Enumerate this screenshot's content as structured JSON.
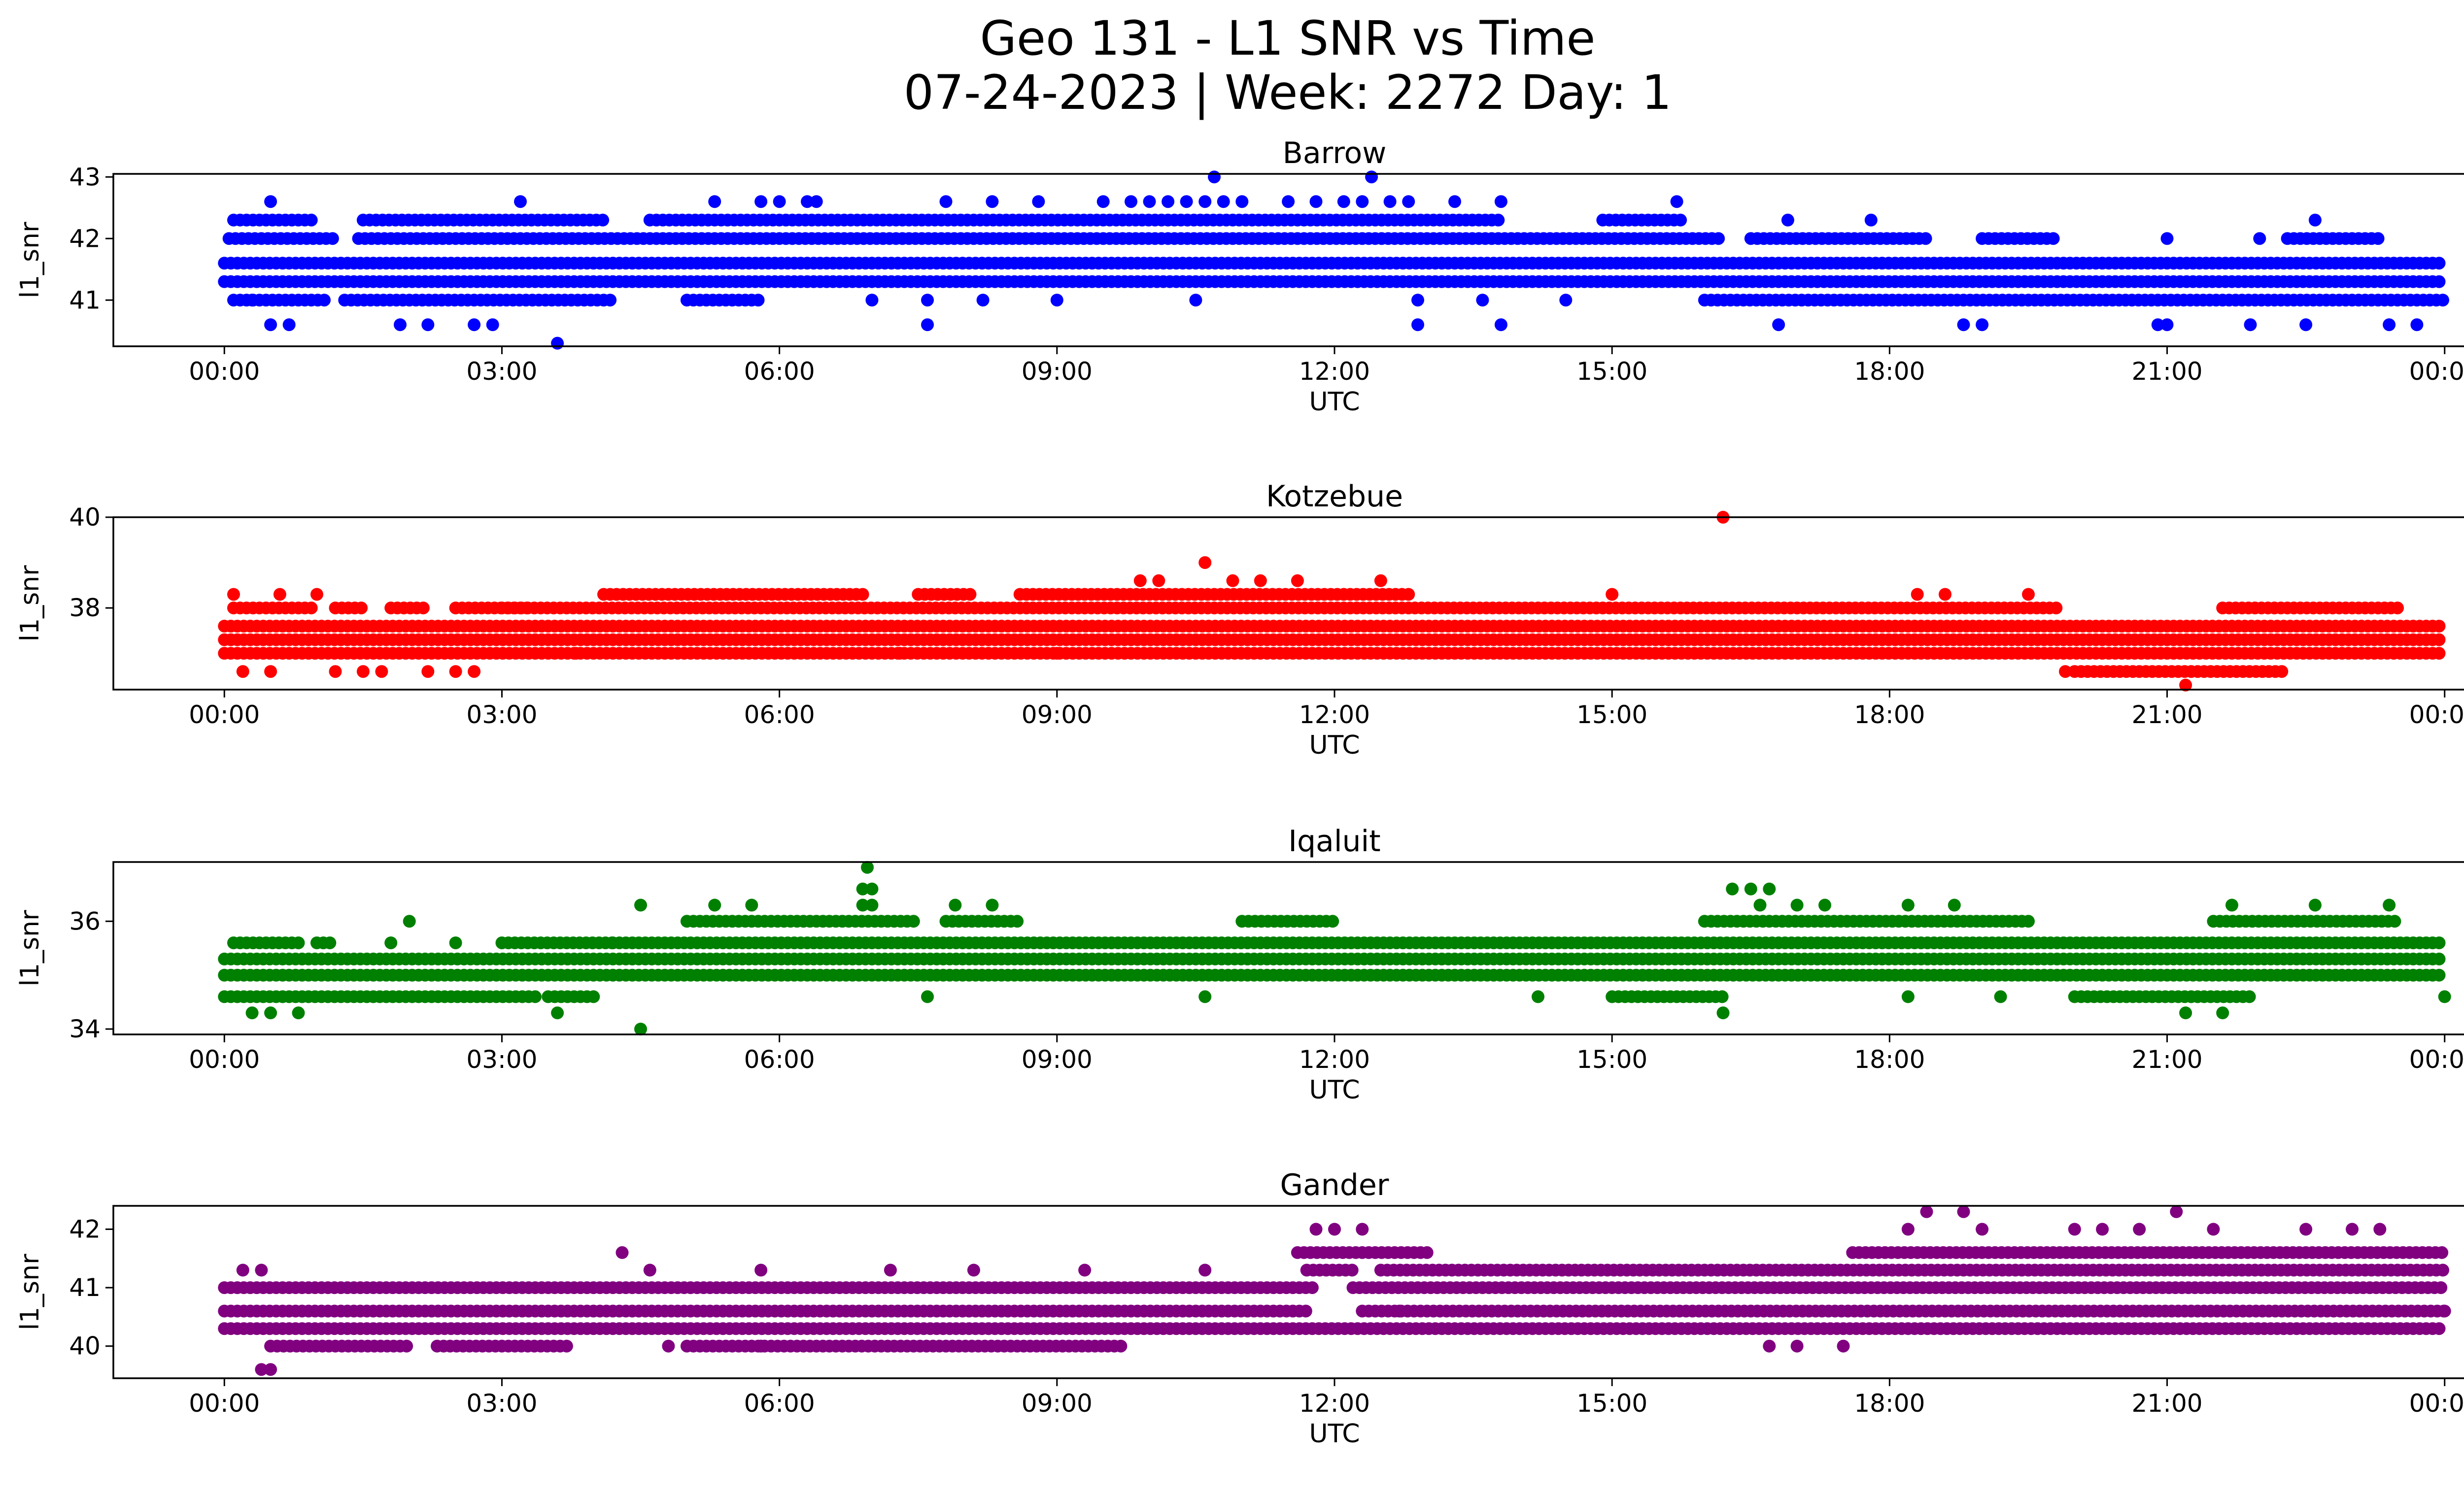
{
  "figure": {
    "title_line1": "Geo 131 - L1 SNR vs Time",
    "title_line2": "07-24-2023 | Week: 2272 Day: 1"
  },
  "chart_data": [
    {
      "type": "scatter",
      "title": "Barrow",
      "xlabel": "UTC",
      "ylabel": "l1_snr",
      "color": "#0000ff",
      "x_tick_labels": [
        "00:00",
        "03:00",
        "06:00",
        "09:00",
        "12:00",
        "15:00",
        "18:00",
        "21:00",
        "00:00"
      ],
      "x_ticks_hours": [
        0,
        3,
        6,
        9,
        12,
        15,
        18,
        21,
        24
      ],
      "xlim_hours": [
        -1.2,
        25.2
      ],
      "ylim": [
        40.25,
        43.05
      ],
      "y_ticks": [
        41,
        42,
        43
      ],
      "bands": [
        {
          "y": 41.3,
          "ranges": [
            [
              0,
              24
            ]
          ]
        },
        {
          "y": 41.6,
          "ranges": [
            [
              0,
              24
            ]
          ]
        },
        {
          "y": 42.0,
          "ranges": [
            [
              0.05,
              1.2
            ],
            [
              1.45,
              16.2
            ],
            [
              16.5,
              18.4
            ],
            [
              19.0,
              19.8
            ],
            [
              22.3,
              23.3
            ]
          ]
        },
        {
          "y": 41.0,
          "ranges": [
            [
              0.1,
              1.1
            ],
            [
              1.3,
              4.2
            ],
            [
              5.0,
              5.8
            ],
            [
              16.0,
              24
            ]
          ]
        },
        {
          "y": 42.3,
          "ranges": [
            [
              0.1,
              1.0
            ],
            [
              1.5,
              4.1
            ],
            [
              4.6,
              13.8
            ],
            [
              14.9,
              15.8
            ]
          ]
        }
      ],
      "scatter": [
        {
          "x": 10.7,
          "y": 43.0
        },
        {
          "x": 12.4,
          "y": 43.0
        },
        {
          "x": 0.5,
          "y": 42.6
        },
        {
          "x": 3.2,
          "y": 42.6
        },
        {
          "x": 5.3,
          "y": 42.6
        },
        {
          "x": 5.8,
          "y": 42.6
        },
        {
          "x": 6.0,
          "y": 42.6
        },
        {
          "x": 6.3,
          "y": 42.6
        },
        {
          "x": 6.4,
          "y": 42.6
        },
        {
          "x": 7.8,
          "y": 42.6
        },
        {
          "x": 8.3,
          "y": 42.6
        },
        {
          "x": 8.8,
          "y": 42.6
        },
        {
          "x": 9.5,
          "y": 42.6
        },
        {
          "x": 9.8,
          "y": 42.6
        },
        {
          "x": 10.0,
          "y": 42.6
        },
        {
          "x": 10.2,
          "y": 42.6
        },
        {
          "x": 10.4,
          "y": 42.6
        },
        {
          "x": 10.6,
          "y": 42.6
        },
        {
          "x": 10.8,
          "y": 42.6
        },
        {
          "x": 11.0,
          "y": 42.6
        },
        {
          "x": 11.5,
          "y": 42.6
        },
        {
          "x": 11.8,
          "y": 42.6
        },
        {
          "x": 12.1,
          "y": 42.6
        },
        {
          "x": 12.3,
          "y": 42.6
        },
        {
          "x": 12.6,
          "y": 42.6
        },
        {
          "x": 12.8,
          "y": 42.6
        },
        {
          "x": 13.3,
          "y": 42.6
        },
        {
          "x": 13.8,
          "y": 42.6
        },
        {
          "x": 15.7,
          "y": 42.6
        },
        {
          "x": 16.9,
          "y": 42.3
        },
        {
          "x": 17.8,
          "y": 42.3
        },
        {
          "x": 22.6,
          "y": 42.3
        },
        {
          "x": 21.0,
          "y": 42.0
        },
        {
          "x": 22.0,
          "y": 42.0
        },
        {
          "x": 0.5,
          "y": 40.6
        },
        {
          "x": 0.7,
          "y": 40.6
        },
        {
          "x": 1.9,
          "y": 40.6
        },
        {
          "x": 2.2,
          "y": 40.6
        },
        {
          "x": 2.7,
          "y": 40.6
        },
        {
          "x": 2.9,
          "y": 40.6
        },
        {
          "x": 3.6,
          "y": 40.3
        },
        {
          "x": 7.6,
          "y": 40.6
        },
        {
          "x": 12.9,
          "y": 40.6
        },
        {
          "x": 13.8,
          "y": 40.6
        },
        {
          "x": 16.8,
          "y": 40.6
        },
        {
          "x": 18.8,
          "y": 40.6
        },
        {
          "x": 19.0,
          "y": 40.6
        },
        {
          "x": 20.9,
          "y": 40.6
        },
        {
          "x": 21.0,
          "y": 40.6
        },
        {
          "x": 21.9,
          "y": 40.6
        },
        {
          "x": 22.5,
          "y": 40.6
        },
        {
          "x": 23.4,
          "y": 40.6
        },
        {
          "x": 23.7,
          "y": 40.6
        },
        {
          "x": 0.3,
          "y": 41.0
        },
        {
          "x": 7.0,
          "y": 41.0
        },
        {
          "x": 7.6,
          "y": 41.0
        },
        {
          "x": 8.2,
          "y": 41.0
        },
        {
          "x": 9.0,
          "y": 41.0
        },
        {
          "x": 10.5,
          "y": 41.0
        },
        {
          "x": 12.9,
          "y": 41.0
        },
        {
          "x": 13.6,
          "y": 41.0
        },
        {
          "x": 14.5,
          "y": 41.0
        }
      ]
    },
    {
      "type": "scatter",
      "title": "Kotzebue",
      "xlabel": "UTC",
      "ylabel": "l1_snr",
      "color": "#ff0000",
      "x_tick_labels": [
        "00:00",
        "03:00",
        "06:00",
        "09:00",
        "12:00",
        "15:00",
        "18:00",
        "21:00",
        "00:00"
      ],
      "x_ticks_hours": [
        0,
        3,
        6,
        9,
        12,
        15,
        18,
        21,
        24
      ],
      "xlim_hours": [
        -1.2,
        25.2
      ],
      "ylim": [
        36.2,
        40.0
      ],
      "y_ticks": [
        38,
        40
      ],
      "bands": [
        {
          "y": 37.0,
          "ranges": [
            [
              0,
              24
            ]
          ]
        },
        {
          "y": 37.3,
          "ranges": [
            [
              0,
              24
            ]
          ]
        },
        {
          "y": 37.6,
          "ranges": [
            [
              0,
              24
            ]
          ]
        },
        {
          "y": 38.0,
          "ranges": [
            [
              0.1,
              1.0
            ],
            [
              1.2,
              1.5
            ],
            [
              1.8,
              2.2
            ],
            [
              2.5,
              3.3
            ],
            [
              3.0,
              19.8
            ],
            [
              21.6,
              23.5
            ]
          ]
        },
        {
          "y": 38.3,
          "ranges": [
            [
              4.1,
              6.9
            ],
            [
              7.5,
              8.1
            ],
            [
              8.6,
              12.8
            ]
          ]
        },
        {
          "y": 36.6,
          "ranges": [
            [
              20.0,
              22.3
            ]
          ]
        }
      ],
      "scatter": [
        {
          "x": 16.2,
          "y": 40.0
        },
        {
          "x": 10.6,
          "y": 39.0
        },
        {
          "x": 12.5,
          "y": 38.6
        },
        {
          "x": 9.9,
          "y": 38.6
        },
        {
          "x": 10.1,
          "y": 38.6
        },
        {
          "x": 10.9,
          "y": 38.6
        },
        {
          "x": 11.2,
          "y": 38.6
        },
        {
          "x": 11.6,
          "y": 38.6
        },
        {
          "x": 0.1,
          "y": 38.3
        },
        {
          "x": 0.6,
          "y": 38.3
        },
        {
          "x": 1.0,
          "y": 38.3
        },
        {
          "x": 15.0,
          "y": 38.3
        },
        {
          "x": 18.3,
          "y": 38.3
        },
        {
          "x": 18.6,
          "y": 38.3
        },
        {
          "x": 19.5,
          "y": 38.3
        },
        {
          "x": 0.2,
          "y": 36.6
        },
        {
          "x": 0.5,
          "y": 36.6
        },
        {
          "x": 1.2,
          "y": 36.6
        },
        {
          "x": 1.5,
          "y": 36.6
        },
        {
          "x": 1.7,
          "y": 36.6
        },
        {
          "x": 2.2,
          "y": 36.6
        },
        {
          "x": 2.5,
          "y": 36.6
        },
        {
          "x": 2.7,
          "y": 36.6
        },
        {
          "x": 19.9,
          "y": 36.6
        },
        {
          "x": 21.2,
          "y": 36.3
        },
        {
          "x": 3.8,
          "y": 37.0
        },
        {
          "x": 7.3,
          "y": 37.0
        },
        {
          "x": 9.0,
          "y": 37.0
        }
      ]
    },
    {
      "type": "scatter",
      "title": "Iqaluit",
      "xlabel": "UTC",
      "ylabel": "l1_snr",
      "color": "#008000",
      "x_tick_labels": [
        "00:00",
        "03:00",
        "06:00",
        "09:00",
        "12:00",
        "15:00",
        "18:00",
        "21:00",
        "00:00"
      ],
      "x_ticks_hours": [
        0,
        3,
        6,
        9,
        12,
        15,
        18,
        21,
        24
      ],
      "xlim_hours": [
        -1.2,
        25.2
      ],
      "ylim": [
        33.9,
        37.1
      ],
      "y_ticks": [
        34,
        36
      ],
      "bands": [
        {
          "y": 35.0,
          "ranges": [
            [
              0,
              24
            ]
          ]
        },
        {
          "y": 35.3,
          "ranges": [
            [
              0,
              24
            ]
          ]
        },
        {
          "y": 35.6,
          "ranges": [
            [
              0.1,
              0.8
            ],
            [
              1.0,
              1.2
            ],
            [
              3.0,
              4.2
            ],
            [
              4.2,
              24
            ]
          ]
        },
        {
          "y": 34.6,
          "ranges": [
            [
              0,
              3.4
            ],
            [
              3.5,
              4.0
            ],
            [
              15.0,
              16.2
            ],
            [
              20.0,
              21.9
            ]
          ]
        },
        {
          "y": 36.0,
          "ranges": [
            [
              5.0,
              7.5
            ],
            [
              7.8,
              8.6
            ],
            [
              11.0,
              12.0
            ],
            [
              16.0,
              19.5
            ],
            [
              21.5,
              23.5
            ]
          ]
        }
      ],
      "scatter": [
        {
          "x": 6.95,
          "y": 37.0
        },
        {
          "x": 6.9,
          "y": 36.6
        },
        {
          "x": 7.0,
          "y": 36.6
        },
        {
          "x": 6.9,
          "y": 36.3
        },
        {
          "x": 7.0,
          "y": 36.3
        },
        {
          "x": 4.5,
          "y": 36.3
        },
        {
          "x": 5.3,
          "y": 36.3
        },
        {
          "x": 5.7,
          "y": 36.3
        },
        {
          "x": 7.9,
          "y": 36.3
        },
        {
          "x": 8.3,
          "y": 36.3
        },
        {
          "x": 16.3,
          "y": 36.6
        },
        {
          "x": 16.5,
          "y": 36.6
        },
        {
          "x": 16.7,
          "y": 36.6
        },
        {
          "x": 16.6,
          "y": 36.3
        },
        {
          "x": 17.0,
          "y": 36.3
        },
        {
          "x": 17.3,
          "y": 36.3
        },
        {
          "x": 18.2,
          "y": 36.3
        },
        {
          "x": 18.7,
          "y": 36.3
        },
        {
          "x": 21.7,
          "y": 36.3
        },
        {
          "x": 22.6,
          "y": 36.3
        },
        {
          "x": 23.4,
          "y": 36.3
        },
        {
          "x": 2.0,
          "y": 36.0
        },
        {
          "x": 1.8,
          "y": 35.6
        },
        {
          "x": 2.5,
          "y": 35.6
        },
        {
          "x": 0.3,
          "y": 34.3
        },
        {
          "x": 0.5,
          "y": 34.3
        },
        {
          "x": 0.8,
          "y": 34.3
        },
        {
          "x": 3.6,
          "y": 34.3
        },
        {
          "x": 4.5,
          "y": 34.0
        },
        {
          "x": 16.2,
          "y": 34.3
        },
        {
          "x": 21.2,
          "y": 34.3
        },
        {
          "x": 21.6,
          "y": 34.3
        },
        {
          "x": 24.0,
          "y": 34.6
        },
        {
          "x": 7.6,
          "y": 34.6
        },
        {
          "x": 10.6,
          "y": 34.6
        },
        {
          "x": 14.2,
          "y": 34.6
        },
        {
          "x": 18.2,
          "y": 34.6
        },
        {
          "x": 19.2,
          "y": 34.6
        }
      ]
    },
    {
      "type": "scatter",
      "title": "Gander",
      "xlabel": "UTC",
      "ylabel": "l1_snr",
      "color": "#800080",
      "x_tick_labels": [
        "00:00",
        "03:00",
        "06:00",
        "09:00",
        "12:00",
        "15:00",
        "18:00",
        "21:00",
        "00:00"
      ],
      "x_ticks_hours": [
        0,
        3,
        6,
        9,
        12,
        15,
        18,
        21,
        24
      ],
      "xlim_hours": [
        -1.2,
        25.2
      ],
      "ylim": [
        39.45,
        42.4
      ],
      "y_ticks": [
        40,
        41,
        42
      ],
      "bands": [
        {
          "y": 40.3,
          "ranges": [
            [
              0,
              24
            ]
          ]
        },
        {
          "y": 40.6,
          "ranges": [
            [
              0,
              11.7
            ],
            [
              12.3,
              24
            ]
          ]
        },
        {
          "y": 41.0,
          "ranges": [
            [
              0,
              11.8
            ],
            [
              12.2,
              24
            ]
          ]
        },
        {
          "y": 41.3,
          "ranges": [
            [
              11.7,
              12.2
            ],
            [
              12.5,
              24
            ]
          ]
        },
        {
          "y": 41.6,
          "ranges": [
            [
              11.6,
              13.0
            ],
            [
              17.6,
              24
            ]
          ]
        },
        {
          "y": 40.0,
          "ranges": [
            [
              0.5,
              2.0
            ],
            [
              2.3,
              3.7
            ],
            [
              5.0,
              9.7
            ]
          ]
        }
      ],
      "scatter": [
        {
          "x": 12.0,
          "y": 42.0
        },
        {
          "x": 11.8,
          "y": 42.0
        },
        {
          "x": 12.3,
          "y": 42.0
        },
        {
          "x": 18.4,
          "y": 42.3
        },
        {
          "x": 18.8,
          "y": 42.3
        },
        {
          "x": 21.1,
          "y": 42.3
        },
        {
          "x": 18.2,
          "y": 42.0
        },
        {
          "x": 19.0,
          "y": 42.0
        },
        {
          "x": 20.0,
          "y": 42.0
        },
        {
          "x": 20.3,
          "y": 42.0
        },
        {
          "x": 20.7,
          "y": 42.0
        },
        {
          "x": 21.5,
          "y": 42.0
        },
        {
          "x": 22.5,
          "y": 42.0
        },
        {
          "x": 23.0,
          "y": 42.0
        },
        {
          "x": 23.3,
          "y": 42.0
        },
        {
          "x": 4.3,
          "y": 41.6
        },
        {
          "x": 0.2,
          "y": 41.3
        },
        {
          "x": 0.4,
          "y": 41.3
        },
        {
          "x": 4.6,
          "y": 41.3
        },
        {
          "x": 5.8,
          "y": 41.3
        },
        {
          "x": 7.2,
          "y": 41.3
        },
        {
          "x": 8.1,
          "y": 41.3
        },
        {
          "x": 9.3,
          "y": 41.3
        },
        {
          "x": 10.6,
          "y": 41.3
        },
        {
          "x": 0.4,
          "y": 39.6
        },
        {
          "x": 0.5,
          "y": 39.6
        },
        {
          "x": 4.8,
          "y": 40.0
        },
        {
          "x": 5.8,
          "y": 40.0
        },
        {
          "x": 16.7,
          "y": 40.0
        },
        {
          "x": 17.0,
          "y": 40.0
        },
        {
          "x": 17.5,
          "y": 40.0
        },
        {
          "x": 12.7,
          "y": 40.6
        },
        {
          "x": 24.0,
          "y": 40.6
        }
      ]
    }
  ]
}
